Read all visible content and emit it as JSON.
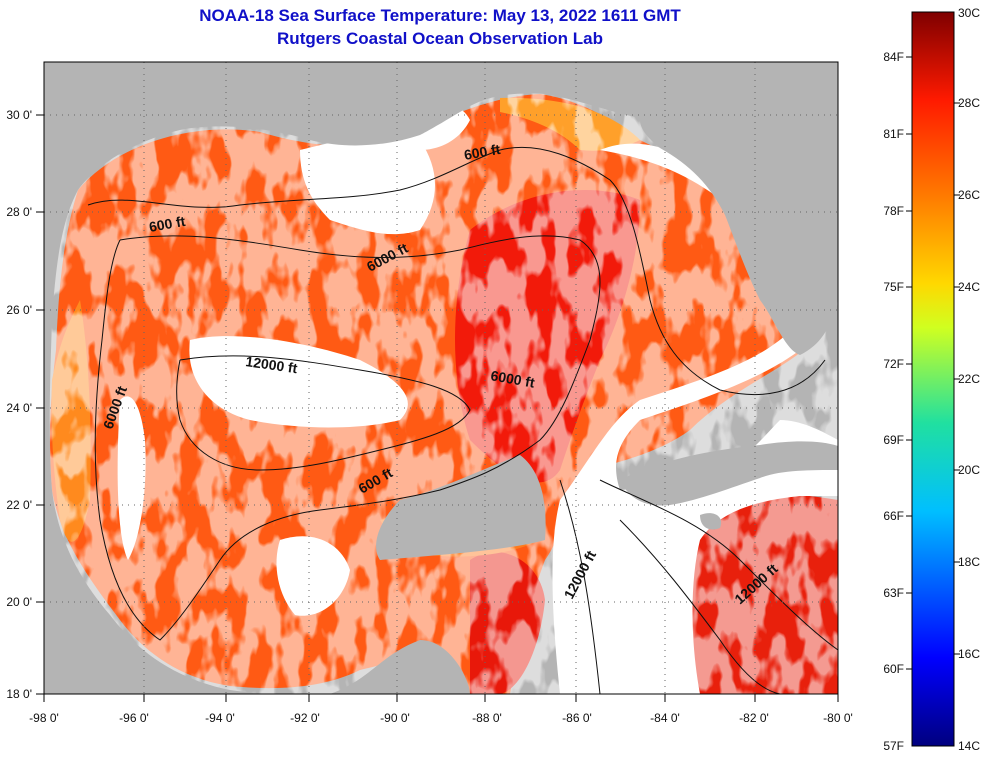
{
  "title_line1": "NOAA-18 Sea Surface Temperature:  May 13, 2022 1611 GMT",
  "title_line2": "Rutgers Coastal Ocean Observation Lab",
  "longitude_labels": [
    "-98 0'",
    "-96 0'",
    "-94 0'",
    "-92 0'",
    "-90 0'",
    "-88 0'",
    "-86 0'",
    "-84 0'",
    "-82 0'",
    "-80 0'"
  ],
  "latitude_labels": [
    "30 0'",
    "28 0'",
    "26 0'",
    "24 0'",
    "22 0'",
    "20 0'",
    "18 0'"
  ],
  "contour_labels": [
    "600 ft",
    "600 ft",
    "6000 ft",
    "12000 ft",
    "6000 ft",
    "6000 ft",
    "600 ft",
    "12000 ft",
    "12000 ft"
  ],
  "colorbar": {
    "celsius_labels": [
      "30C",
      "28C",
      "26C",
      "24C",
      "22C",
      "20C",
      "18C",
      "16C",
      "14C"
    ],
    "fahrenheit_labels": [
      "84F",
      "81F",
      "78F",
      "75F",
      "72F",
      "69F",
      "66F",
      "63F",
      "60F",
      "57F"
    ]
  },
  "colors": {
    "land": "#b4b4b4",
    "cloud": "#ffffff",
    "title": "#1010c8"
  }
}
